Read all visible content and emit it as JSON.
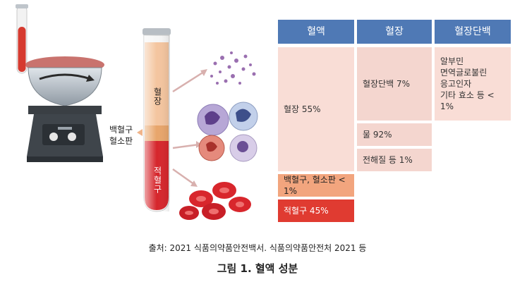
{
  "illustration": {
    "label_plasma": "혈장",
    "label_wbc_platelet": [
      "백혈구",
      "혈소판"
    ],
    "label_rbc": "적혈구"
  },
  "table": {
    "headers": [
      "혈액",
      "혈장",
      "혈장단백"
    ],
    "col1": {
      "plasma": "혈장 55%",
      "wbc_platelet": "백혈구, 혈소판 < 1%",
      "rbc": "적혈구 45%"
    },
    "col2": {
      "protein": "혈장단백 7%",
      "water": "물 92%",
      "electrolyte": "전해질 등 1%"
    },
    "col3": [
      "알부민",
      "면역글로불린",
      "응고인자",
      "기타 효소 등 < 1%"
    ]
  },
  "source": "출처: 2021 식품의약품안전백서. 식품의약품안전처 2021 등",
  "figure_title": "그림 1. 혈액 성분",
  "colors": {
    "header_blue": "#4f79b5",
    "plasma_pink": "#f9ddd6",
    "buffy_orange": "#f2a57e",
    "rbc_red": "#e03b31"
  }
}
